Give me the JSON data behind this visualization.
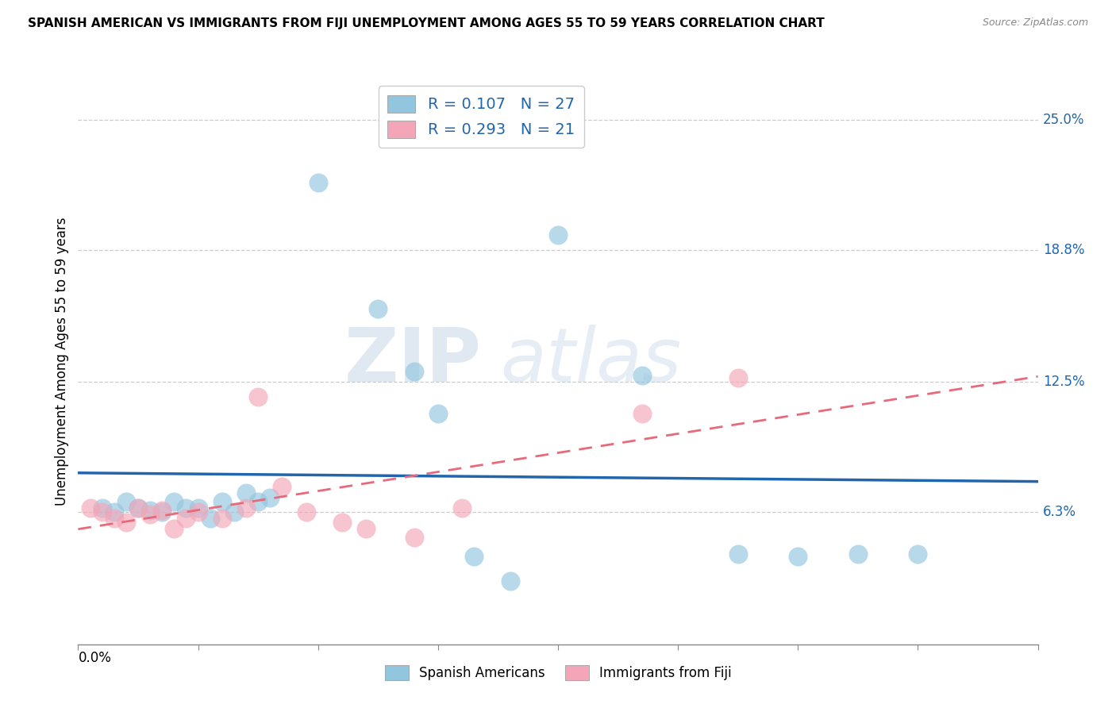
{
  "title": "SPANISH AMERICAN VS IMMIGRANTS FROM FIJI UNEMPLOYMENT AMONG AGES 55 TO 59 YEARS CORRELATION CHART",
  "source": "Source: ZipAtlas.com",
  "ylabel": "Unemployment Among Ages 55 to 59 years",
  "ytick_values": [
    0.063,
    0.125,
    0.188,
    0.25
  ],
  "ytick_labels": [
    "6.3%",
    "12.5%",
    "18.8%",
    "25.0%"
  ],
  "xlim": [
    0.0,
    0.08
  ],
  "ylim": [
    0.0,
    0.27
  ],
  "blue_color": "#92c5de",
  "pink_color": "#f4a6b8",
  "blue_line_color": "#2166ac",
  "pink_line_color": "#e8697a",
  "watermark_zip": "ZIP",
  "watermark_atlas": "atlas",
  "spanish_x": [
    0.002,
    0.003,
    0.004,
    0.005,
    0.006,
    0.007,
    0.008,
    0.009,
    0.01,
    0.011,
    0.012,
    0.013,
    0.014,
    0.015,
    0.016,
    0.02,
    0.025,
    0.028,
    0.03,
    0.033,
    0.036,
    0.04,
    0.047,
    0.055,
    0.06,
    0.065,
    0.07
  ],
  "spanish_y": [
    0.065,
    0.063,
    0.068,
    0.065,
    0.064,
    0.063,
    0.068,
    0.065,
    0.065,
    0.06,
    0.068,
    0.063,
    0.072,
    0.068,
    0.07,
    0.22,
    0.16,
    0.13,
    0.11,
    0.042,
    0.03,
    0.195,
    0.128,
    0.043,
    0.042,
    0.043,
    0.043
  ],
  "fiji_x": [
    0.001,
    0.002,
    0.003,
    0.004,
    0.005,
    0.006,
    0.007,
    0.008,
    0.009,
    0.01,
    0.012,
    0.014,
    0.015,
    0.017,
    0.019,
    0.022,
    0.024,
    0.028,
    0.032,
    0.047,
    0.055
  ],
  "fiji_y": [
    0.065,
    0.063,
    0.06,
    0.058,
    0.065,
    0.062,
    0.064,
    0.055,
    0.06,
    0.063,
    0.06,
    0.065,
    0.118,
    0.075,
    0.063,
    0.058,
    0.055,
    0.051,
    0.065,
    0.11,
    0.127
  ]
}
